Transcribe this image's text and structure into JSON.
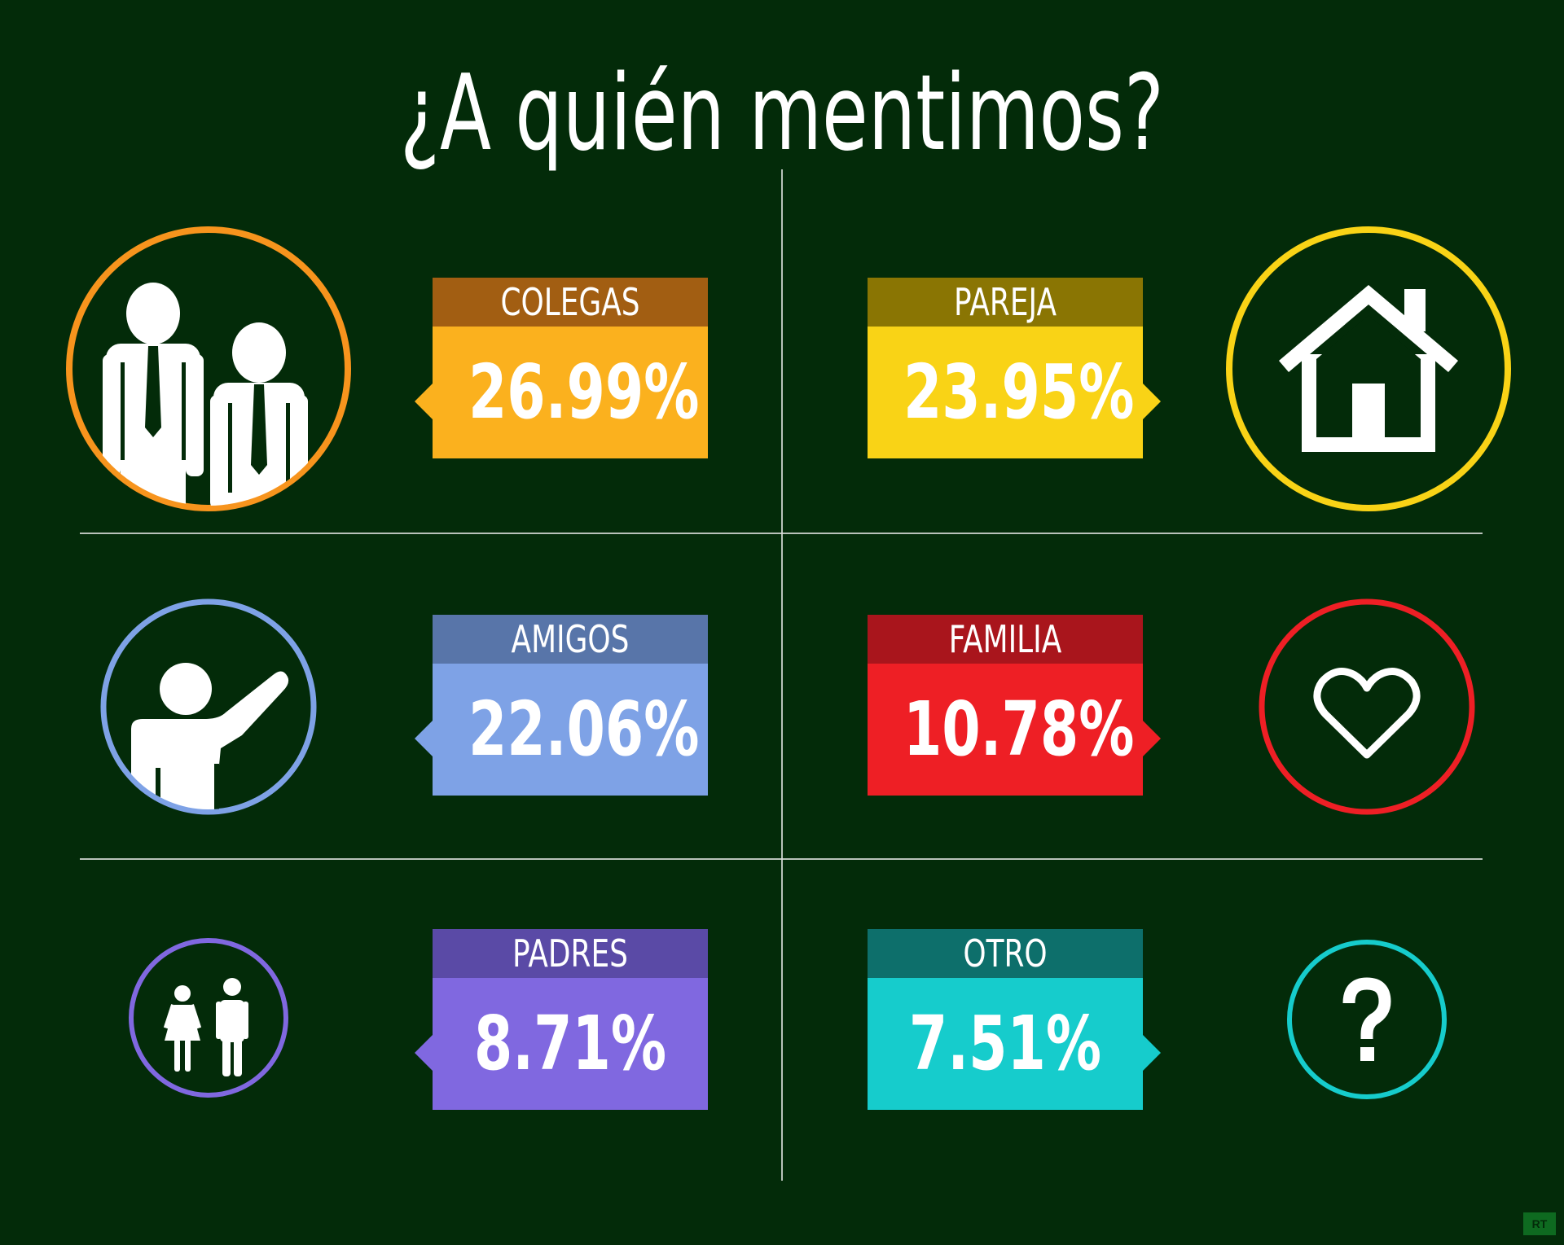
{
  "title": "¿A quién mentimos?",
  "chart_data": {
    "type": "table",
    "categories": [
      "COLEGAS",
      "PAREJA",
      "AMIGOS",
      "FAMILIA",
      "PADRES",
      "OTRO"
    ],
    "values": [
      26.99,
      23.95,
      22.06,
      10.78,
      8.71,
      7.51
    ],
    "value_labels": [
      "26.99%",
      "23.95%",
      "22.06%",
      "10.78%",
      "8.71%",
      "7.51%"
    ]
  },
  "cards": {
    "colegas": {
      "label": "COLEGAS",
      "value": "26.99%",
      "label_color": "#a25e12",
      "value_color": "#fbb11e",
      "ring_color": "#f7941d",
      "icon": "colleagues-icon"
    },
    "pareja": {
      "label": "PAREJA",
      "value": "23.95%",
      "label_color": "#8a7503",
      "value_color": "#f9d316",
      "ring_color": "#f9d316",
      "icon": "house-icon"
    },
    "amigos": {
      "label": "AMIGOS",
      "value": "22.06%",
      "label_color": "#5875a9",
      "value_color": "#7ea2e6",
      "ring_color": "#7ea2e6",
      "icon": "friend-waving-icon"
    },
    "familia": {
      "label": "FAMILIA",
      "value": "10.78%",
      "label_color": "#a9151c",
      "value_color": "#ee1f25",
      "ring_color": "#ee1f25",
      "icon": "heart-icon"
    },
    "padres": {
      "label": "PADRES",
      "value": "8.71%",
      "label_color": "#5a4aa6",
      "value_color": "#8068e0",
      "ring_color": "#8068e0",
      "icon": "parents-icon"
    },
    "otro": {
      "label": "OTRO",
      "value": "7.51%",
      "label_color": "#0d6f6b",
      "value_color": "#16cccc",
      "ring_color": "#16cccc",
      "icon": "question-mark-icon"
    }
  },
  "badge": {
    "text": "RT"
  }
}
